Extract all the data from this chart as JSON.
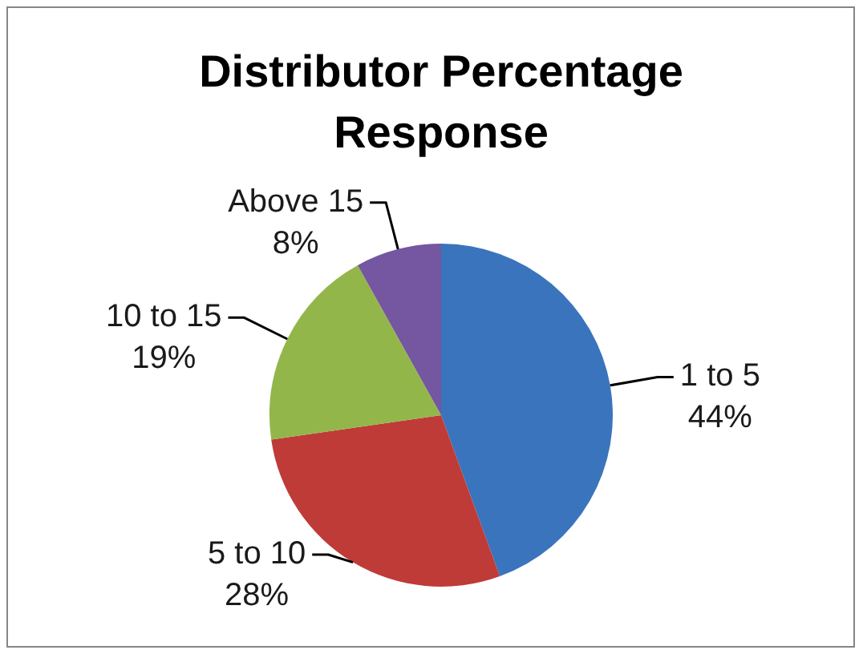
{
  "chart_data": {
    "type": "pie",
    "title": "Distributor Percentage Response",
    "categories": [
      "1 to 5",
      "5 to 10",
      "10 to 15",
      "Above 15"
    ],
    "values": [
      44,
      28,
      19,
      8
    ],
    "value_labels": [
      "44%",
      "28%",
      "19%",
      "8%"
    ],
    "colors": [
      "#3a74bd",
      "#bf3b37",
      "#93b64a",
      "#7556a0"
    ],
    "legend": false
  }
}
